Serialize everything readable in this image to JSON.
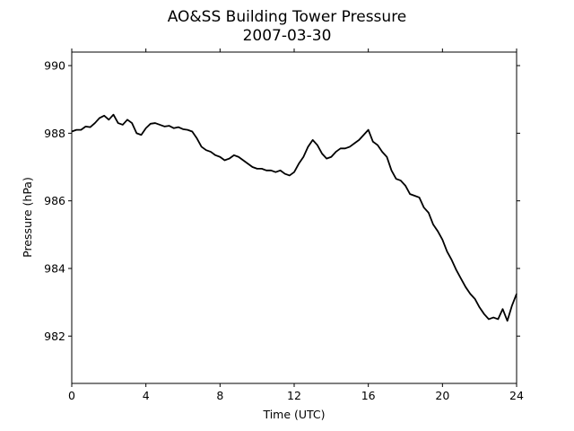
{
  "chart_data": {
    "type": "line",
    "title": "AO&SS Building Tower Pressure",
    "subtitle": "2007-03-30",
    "xlabel": "Time (UTC)",
    "ylabel": "Pressure (hPa)",
    "xlim": [
      0,
      24
    ],
    "ylim": [
      980.6,
      990.4
    ],
    "xticks": [
      0,
      4,
      8,
      12,
      16,
      20,
      24
    ],
    "yticks": [
      982,
      984,
      986,
      988,
      990
    ],
    "grid": false,
    "legend": "none",
    "line_color": "#000000",
    "series": [
      {
        "x": [
          0,
          0.25,
          0.5,
          0.75,
          1.0,
          1.25,
          1.5,
          1.75,
          2.0,
          2.25,
          2.5,
          2.75,
          3.0,
          3.25,
          3.5,
          3.75,
          4.0,
          4.25,
          4.5,
          4.75,
          5.0,
          5.25,
          5.5,
          5.75,
          6.0,
          6.25,
          6.5,
          6.75,
          7.0,
          7.25,
          7.5,
          7.75,
          8.0,
          8.25,
          8.5,
          8.75,
          9.0,
          9.25,
          9.5,
          9.75,
          10.0,
          10.25,
          10.5,
          10.75,
          11.0,
          11.25,
          11.5,
          11.75,
          12.0,
          12.25,
          12.5,
          12.75,
          13.0,
          13.25,
          13.5,
          13.75,
          14.0,
          14.25,
          14.5,
          14.75,
          15.0,
          15.25,
          15.5,
          15.75,
          16.0,
          16.25,
          16.5,
          16.75,
          17.0,
          17.25,
          17.5,
          17.75,
          18.0,
          18.25,
          18.5,
          18.75,
          19.0,
          19.25,
          19.5,
          19.75,
          20.0,
          20.25,
          20.5,
          20.75,
          21.0,
          21.25,
          21.5,
          21.75,
          22.0,
          22.25,
          22.5,
          22.75,
          23.0,
          23.25,
          23.5,
          23.75,
          24.0
        ],
        "values": [
          988.05,
          988.1,
          988.1,
          988.2,
          988.18,
          988.3,
          988.45,
          988.52,
          988.4,
          988.55,
          988.3,
          988.25,
          988.4,
          988.3,
          988.0,
          987.95,
          988.15,
          988.28,
          988.3,
          988.25,
          988.2,
          988.22,
          988.15,
          988.18,
          988.12,
          988.1,
          988.05,
          987.85,
          987.6,
          987.5,
          987.45,
          987.35,
          987.3,
          987.2,
          987.25,
          987.35,
          987.3,
          987.2,
          987.1,
          987.0,
          986.95,
          986.95,
          986.9,
          986.9,
          986.85,
          986.9,
          986.8,
          986.75,
          986.85,
          987.1,
          987.3,
          987.6,
          987.8,
          987.65,
          987.4,
          987.25,
          987.3,
          987.45,
          987.55,
          987.55,
          987.6,
          987.7,
          987.8,
          987.95,
          988.1,
          987.75,
          987.65,
          987.45,
          987.3,
          986.9,
          986.65,
          986.6,
          986.45,
          986.2,
          986.15,
          986.1,
          985.8,
          985.65,
          985.3,
          985.1,
          984.85,
          984.5,
          984.25,
          983.95,
          983.7,
          983.45,
          983.25,
          983.1,
          982.85,
          982.65,
          982.5,
          982.55,
          982.5,
          982.8,
          982.45,
          982.9,
          983.25
        ]
      }
    ]
  }
}
